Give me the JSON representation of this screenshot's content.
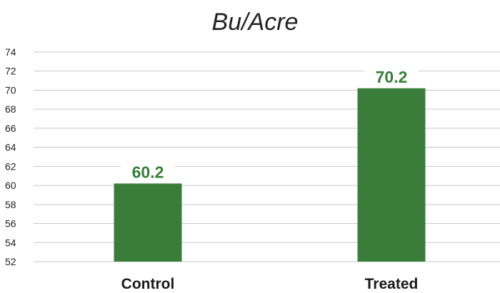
{
  "chart_data": {
    "type": "bar",
    "title": "Bu/Acre",
    "categories": [
      "Control",
      "Treated"
    ],
    "values": [
      60.2,
      70.2
    ],
    "data_labels": [
      "60.2",
      "70.2"
    ],
    "ylim": [
      52,
      74
    ],
    "yticks": [
      52,
      54,
      56,
      58,
      60,
      62,
      64,
      66,
      68,
      70,
      72,
      74
    ],
    "grid": true,
    "bar_color": "#3a7d3b",
    "label_color": "#3a7d3b"
  }
}
